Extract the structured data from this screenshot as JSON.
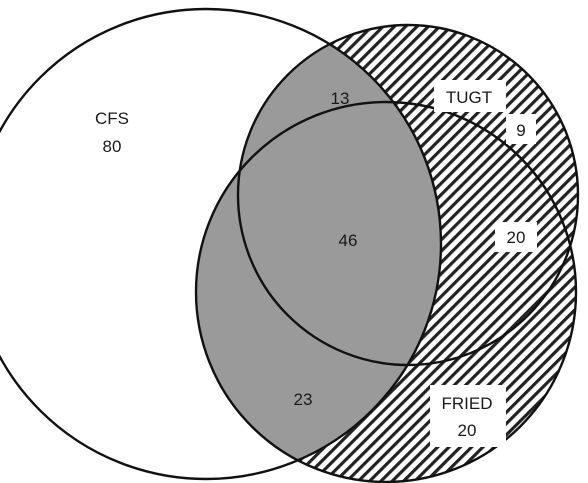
{
  "diagram": {
    "type": "venn",
    "sets": [
      {
        "name": "CFS",
        "only_count": "80"
      },
      {
        "name": "TUGT",
        "only_count": "9"
      },
      {
        "name": "FRIED",
        "only_count": "20"
      }
    ],
    "regions": {
      "cfs_tugt": "13",
      "cfs_tugt_fried": "46",
      "tugt_fried": "20",
      "cfs_fried": "23"
    },
    "colors": {
      "overlap_fill": "#9a9a9a",
      "hatch": "#222222",
      "outline": "#111111",
      "background": "#ffffff"
    }
  }
}
